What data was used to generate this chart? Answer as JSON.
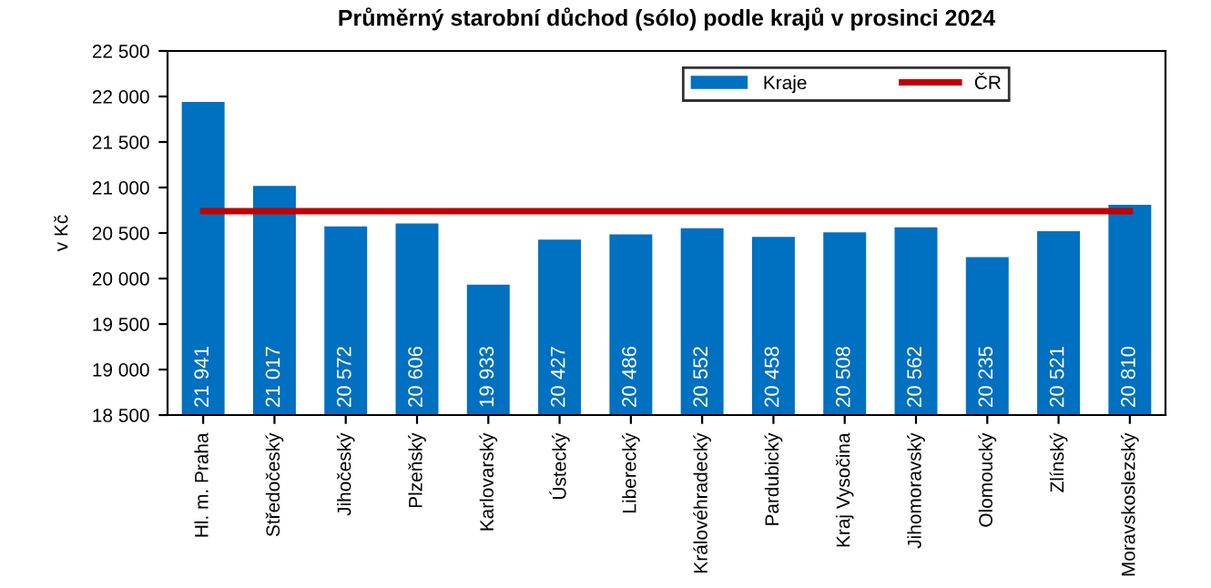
{
  "chart_data": {
    "type": "bar",
    "title": "Průměrný starobní důchod (sólo) podle krajů v prosinci 2024",
    "ylabel": "v Kč",
    "categories": [
      "Hl. m. Praha",
      "Středočeský",
      "Jihočeský",
      "Plzeňský",
      "Karlovarský",
      "Ústecký",
      "Liberecký",
      "Královéhradecký",
      "Pardubický",
      "Kraj Vysočina",
      "Jihomoravský",
      "Olomoucký",
      "Zlínský",
      "Moravskoslezský"
    ],
    "series": [
      {
        "name": "Kraje",
        "color": "#0070c0",
        "values": [
          21941,
          21017,
          20572,
          20606,
          19933,
          20427,
          20486,
          20552,
          20458,
          20508,
          20562,
          20235,
          20521,
          20810
        ],
        "value_labels": [
          "21 941",
          "21 017",
          "20 572",
          "20 606",
          "19 933",
          "20 427",
          "20 486",
          "20 552",
          "20 458",
          "20 508",
          "20 562",
          "20 235",
          "20 521",
          "20 810"
        ]
      },
      {
        "name": "ČR",
        "type": "line",
        "color": "#c00000",
        "values": [
          20740,
          20740,
          20740,
          20740,
          20740,
          20740,
          20740,
          20740,
          20740,
          20740,
          20740,
          20740,
          20740,
          20740
        ]
      }
    ],
    "ylim": [
      18500,
      22500
    ],
    "yticks": [
      {
        "value": 18500,
        "label": "18 500"
      },
      {
        "value": 19000,
        "label": "19 000"
      },
      {
        "value": 19500,
        "label": "19 500"
      },
      {
        "value": 20000,
        "label": "20 000"
      },
      {
        "value": 20500,
        "label": "20 500"
      },
      {
        "value": 21000,
        "label": "21 000"
      },
      {
        "value": 21500,
        "label": "21 500"
      },
      {
        "value": 22000,
        "label": "22 000"
      },
      {
        "value": 22500,
        "label": "22 500"
      }
    ],
    "legend": "top right",
    "grid": false
  }
}
